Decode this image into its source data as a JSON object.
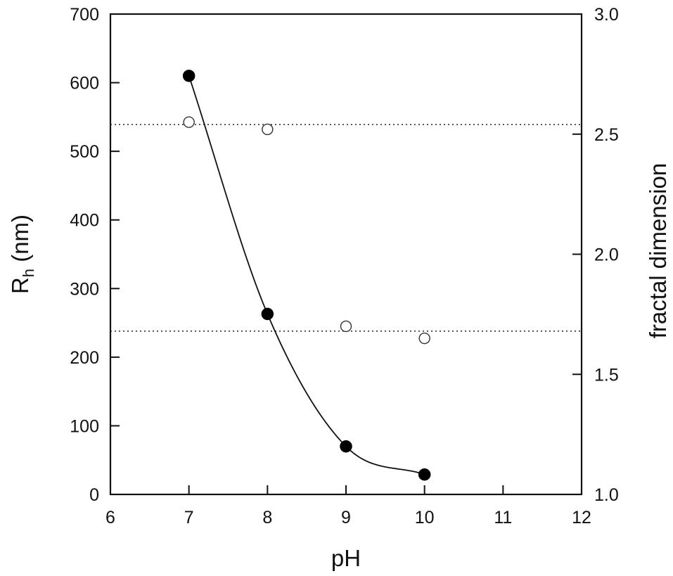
{
  "chart_data": {
    "type": "scatter",
    "xlabel": "pH",
    "ylabel": {
      "main": "R",
      "sub": "h",
      "unit": " (nm)"
    },
    "y2label": "fractal dimension",
    "xlim": [
      6,
      12
    ],
    "ylim": [
      0,
      700
    ],
    "y2lim": [
      1.0,
      3.0
    ],
    "x_ticks": [
      "6",
      "7",
      "8",
      "9",
      "10",
      "11",
      "12"
    ],
    "y_ticks": [
      "0",
      "100",
      "200",
      "300",
      "400",
      "500",
      "600",
      "700"
    ],
    "y2_ticks": [
      "1.0",
      "1.5",
      "2.0",
      "2.5",
      "3.0"
    ],
    "grid": false,
    "series": [
      {
        "axis": "left",
        "marker": "filled-circle",
        "line": "smooth",
        "x": [
          7,
          8,
          9,
          10
        ],
        "y": [
          610,
          263,
          70,
          29
        ]
      },
      {
        "axis": "right",
        "marker": "open-circle",
        "line": "none",
        "x": [
          7,
          8,
          9,
          10
        ],
        "y": [
          2.55,
          2.52,
          1.7,
          1.65
        ]
      }
    ],
    "reference_lines": [
      {
        "axis": "right",
        "style": "dotted",
        "y": 2.54
      },
      {
        "axis": "right",
        "style": "dotted",
        "y": 1.68
      }
    ]
  }
}
